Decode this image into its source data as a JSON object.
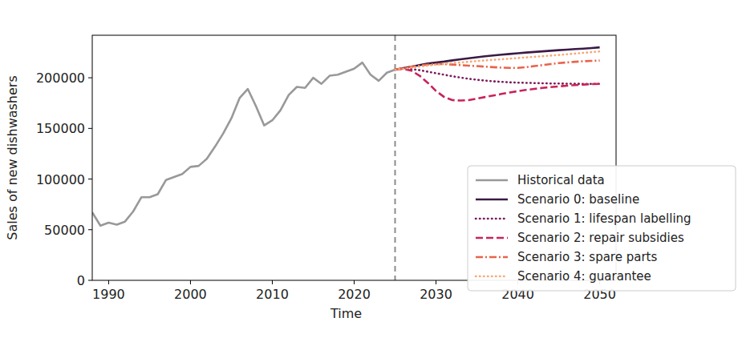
{
  "chart_data": {
    "type": "line",
    "x_label": "Time",
    "y_label": "Sales of new dishwashers",
    "x": [
      1988,
      1989,
      1990,
      1991,
      1992,
      1993,
      1994,
      1995,
      1996,
      1997,
      1998,
      1999,
      2000,
      2001,
      2002,
      2003,
      2004,
      2005,
      2006,
      2007,
      2008,
      2009,
      2010,
      2011,
      2012,
      2013,
      2014,
      2015,
      2016,
      2017,
      2018,
      2019,
      2020,
      2021,
      2022,
      2023,
      2024,
      2025,
      2026,
      2027,
      2028,
      2029,
      2030,
      2031,
      2032,
      2033,
      2034,
      2035,
      2036,
      2037,
      2038,
      2039,
      2040,
      2041,
      2042,
      2043,
      2044,
      2045,
      2046,
      2047,
      2048,
      2049,
      2050
    ],
    "xlim": [
      1988,
      2052
    ],
    "xticks": [
      1990,
      2000,
      2010,
      2020,
      2030,
      2040,
      2050
    ],
    "ylim": [
      0,
      242000
    ],
    "yticks": [
      0,
      50000,
      100000,
      150000,
      200000
    ],
    "grid": false,
    "legend": "right",
    "annotations": [
      {
        "x": 2025,
        "line_style": "dashed",
        "color": "#8c8c8c"
      }
    ],
    "series": [
      {
        "name": "Historical data",
        "color": "#999999",
        "line_style": "solid",
        "values": [
          67000,
          54000,
          57000,
          55000,
          58000,
          68000,
          82000,
          82000,
          85000,
          99000,
          102000,
          105000,
          112000,
          113000,
          120000,
          132000,
          145000,
          160000,
          180000,
          189000,
          172000,
          153000,
          158000,
          168000,
          183000,
          191000,
          190000,
          200000,
          194000,
          202000,
          203000,
          206000,
          209000,
          215000,
          203000,
          197000,
          205000,
          208000,
          null,
          null,
          null,
          null,
          null,
          null,
          null,
          null,
          null,
          null,
          null,
          null,
          null,
          null,
          null,
          null,
          null,
          null,
          null,
          null,
          null,
          null,
          null,
          null,
          null
        ]
      },
      {
        "name": "Scenario 0: baseline",
        "color": "#3b1a45",
        "line_style": "solid",
        "values": [
          null,
          null,
          null,
          null,
          null,
          null,
          null,
          null,
          null,
          null,
          null,
          null,
          null,
          null,
          null,
          null,
          null,
          null,
          null,
          null,
          null,
          null,
          null,
          null,
          null,
          null,
          null,
          null,
          null,
          null,
          null,
          null,
          null,
          null,
          null,
          null,
          null,
          208000,
          209500,
          211000,
          212500,
          214000,
          215000,
          216000,
          217200,
          218300,
          219300,
          220300,
          221200,
          222000,
          222800,
          223500,
          224200,
          224900,
          225500,
          226100,
          226700,
          227300,
          227800,
          228300,
          228800,
          229400,
          230000
        ]
      },
      {
        "name": "Scenario 1: lifespan labelling",
        "color": "#7d1d5c",
        "line_style": "dotted",
        "values": [
          null,
          null,
          null,
          null,
          null,
          null,
          null,
          null,
          null,
          null,
          null,
          null,
          null,
          null,
          null,
          null,
          null,
          null,
          null,
          null,
          null,
          null,
          null,
          null,
          null,
          null,
          null,
          null,
          null,
          null,
          null,
          null,
          null,
          null,
          null,
          null,
          null,
          208000,
          209000,
          208500,
          207500,
          206000,
          204500,
          203000,
          201500,
          200200,
          199000,
          198000,
          197200,
          196500,
          196000,
          195500,
          195200,
          195000,
          194800,
          194600,
          194400,
          194300,
          194200,
          194100,
          194000,
          194000,
          194000
        ]
      },
      {
        "name": "Scenario 2: repair subsidies",
        "color": "#c8245a",
        "line_style": "dashed",
        "values": [
          null,
          null,
          null,
          null,
          null,
          null,
          null,
          null,
          null,
          null,
          null,
          null,
          null,
          null,
          null,
          null,
          null,
          null,
          null,
          null,
          null,
          null,
          null,
          null,
          null,
          null,
          null,
          null,
          null,
          null,
          null,
          null,
          null,
          null,
          null,
          null,
          null,
          208000,
          209000,
          207000,
          202000,
          195000,
          187000,
          181000,
          178000,
          177500,
          178000,
          179500,
          181000,
          182500,
          184000,
          185500,
          186800,
          188000,
          189000,
          190000,
          190800,
          191500,
          192200,
          192800,
          193300,
          193700,
          194000
        ]
      },
      {
        "name": "Scenario 3: spare parts",
        "color": "#e8644a",
        "line_style": "dashdot",
        "values": [
          null,
          null,
          null,
          null,
          null,
          null,
          null,
          null,
          null,
          null,
          null,
          null,
          null,
          null,
          null,
          null,
          null,
          null,
          null,
          null,
          null,
          null,
          null,
          null,
          null,
          null,
          null,
          null,
          null,
          null,
          null,
          null,
          null,
          null,
          null,
          null,
          null,
          208000,
          209500,
          211000,
          212000,
          213000,
          213500,
          213500,
          213000,
          212500,
          212000,
          211500,
          211000,
          210500,
          210000,
          209800,
          209800,
          210500,
          211500,
          212500,
          213500,
          214500,
          215200,
          215800,
          216300,
          216700,
          217000
        ]
      },
      {
        "name": "Scenario 4: guarantee",
        "color": "#f5aa78",
        "line_style": "dotted",
        "values": [
          null,
          null,
          null,
          null,
          null,
          null,
          null,
          null,
          null,
          null,
          null,
          null,
          null,
          null,
          null,
          null,
          null,
          null,
          null,
          null,
          null,
          null,
          null,
          null,
          null,
          null,
          null,
          null,
          null,
          null,
          null,
          null,
          null,
          null,
          null,
          null,
          null,
          208000,
          209000,
          210000,
          211000,
          212000,
          213000,
          213700,
          214400,
          215100,
          215800,
          216500,
          217100,
          217700,
          218300,
          218900,
          219500,
          220100,
          220700,
          221300,
          221900,
          222500,
          223200,
          223900,
          224600,
          225300,
          226000
        ]
      }
    ]
  }
}
